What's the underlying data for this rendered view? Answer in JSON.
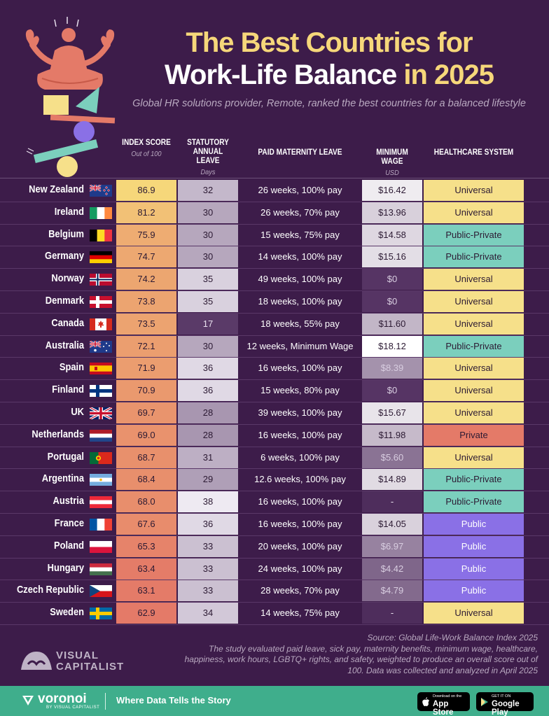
{
  "title": {
    "line1": "The Best Countries for",
    "line2_main": "Work-Life Balance",
    "line2_accent": "in 2025"
  },
  "subtitle": "Global HR solutions provider, Remote, ranked the best countries for a balanced lifestyle",
  "headers": {
    "index": "INDEX SCORE",
    "index_sub": "Out of 100",
    "leave": "STATUTORY ANNUAL LEAVE",
    "leave_sub": "Days",
    "maternity": "PAID MATERNITY LEAVE",
    "wage": "MINIMUM WAGE",
    "wage_sub": "USD",
    "health": "HEALTHCARE SYSTEM"
  },
  "colors": {
    "background": "#3d1c4a",
    "universal": "#f6e08a",
    "public_private": "#7bcfbd",
    "private": "#e47a68",
    "public": "#8a70e6",
    "footer": "#3fae8c"
  },
  "chart_data": {
    "type": "table",
    "columns": [
      "Index Score",
      "Statutory Annual Leave",
      "Paid Maternity Leave",
      "Minimum Wage",
      "Healthcare System"
    ],
    "rows": [
      {
        "country": "New Zealand",
        "flag": "new-zealand-flag",
        "index": "86.9",
        "leave": "32",
        "maternity": "26 weeks, 100% pay",
        "wage": "$16.42",
        "health": "Universal"
      },
      {
        "country": "Ireland",
        "flag": "ireland-flag",
        "index": "81.2",
        "leave": "30",
        "maternity": "26 weeks, 70% pay",
        "wage": "$13.96",
        "health": "Universal"
      },
      {
        "country": "Belgium",
        "flag": "belgium-flag",
        "index": "75.9",
        "leave": "30",
        "maternity": "15 weeks, 75% pay",
        "wage": "$14.58",
        "health": "Public-Private"
      },
      {
        "country": "Germany",
        "flag": "germany-flag",
        "index": "74.7",
        "leave": "30",
        "maternity": "14 weeks, 100% pay",
        "wage": "$15.16",
        "health": "Public-Private"
      },
      {
        "country": "Norway",
        "flag": "norway-flag",
        "index": "74.2",
        "leave": "35",
        "maternity": "49 weeks, 100% pay",
        "wage": "$0",
        "health": "Universal"
      },
      {
        "country": "Denmark",
        "flag": "denmark-flag",
        "index": "73.8",
        "leave": "35",
        "maternity": "18 weeks, 100% pay",
        "wage": "$0",
        "health": "Universal"
      },
      {
        "country": "Canada",
        "flag": "canada-flag",
        "index": "73.5",
        "leave": "17",
        "maternity": "18 weeks, 55% pay",
        "wage": "$11.60",
        "health": "Universal"
      },
      {
        "country": "Australia",
        "flag": "australia-flag",
        "index": "72.1",
        "leave": "30",
        "maternity": "12 weeks, Minimum Wage",
        "wage": "$18.12",
        "health": "Public-Private"
      },
      {
        "country": "Spain",
        "flag": "spain-flag",
        "index": "71.9",
        "leave": "36",
        "maternity": "16 weeks, 100% pay",
        "wage": "$8.39",
        "health": "Universal"
      },
      {
        "country": "Finland",
        "flag": "finland-flag",
        "index": "70.9",
        "leave": "36",
        "maternity": "15 weeks, 80% pay",
        "wage": "$0",
        "health": "Universal"
      },
      {
        "country": "UK",
        "flag": "uk-flag",
        "index": "69.7",
        "leave": "28",
        "maternity": "39 weeks, 100% pay",
        "wage": "$15.67",
        "health": "Universal"
      },
      {
        "country": "Netherlands",
        "flag": "netherlands-flag",
        "index": "69.0",
        "leave": "28",
        "maternity": "16 weeks, 100% pay",
        "wage": "$11.98",
        "health": "Private"
      },
      {
        "country": "Portugal",
        "flag": "portugal-flag",
        "index": "68.7",
        "leave": "31",
        "maternity": "6 weeks, 100% pay",
        "wage": "$5.60",
        "health": "Universal"
      },
      {
        "country": "Argentina",
        "flag": "argentina-flag",
        "index": "68.4",
        "leave": "29",
        "maternity": "12.6 weeks, 100% pay",
        "wage": "$14.89",
        "health": "Public-Private"
      },
      {
        "country": "Austria",
        "flag": "austria-flag",
        "index": "68.0",
        "leave": "38",
        "maternity": "16 weeks, 100% pay",
        "wage": "-",
        "health": "Public-Private"
      },
      {
        "country": "France",
        "flag": "france-flag",
        "index": "67.6",
        "leave": "36",
        "maternity": "16 weeks, 100% pay",
        "wage": "$14.05",
        "health": "Public"
      },
      {
        "country": "Poland",
        "flag": "poland-flag",
        "index": "65.3",
        "leave": "33",
        "maternity": "20 weeks, 100% pay",
        "wage": "$6.97",
        "health": "Public"
      },
      {
        "country": "Hungary",
        "flag": "hungary-flag",
        "index": "63.4",
        "leave": "33",
        "maternity": "24 weeks, 100% pay",
        "wage": "$4.42",
        "health": "Public"
      },
      {
        "country": "Czech Republic",
        "flag": "czech-republic-flag",
        "index": "63.1",
        "leave": "33",
        "maternity": "28 weeks, 70% pay",
        "wage": "$4.79",
        "health": "Public"
      },
      {
        "country": "Sweden",
        "flag": "sweden-flag",
        "index": "62.9",
        "leave": "34",
        "maternity": "14 weeks, 75% pay",
        "wage": "-",
        "health": "Universal"
      }
    ]
  },
  "source": "Source: Global Life-Work Balance Index 2025",
  "notes": "The study evaluated paid leave, sick pay, maternity benefits, minimum wage, healthcare, happiness, work hours, LGBTQ+ rights, and safety, weighted to produce an overall score out of 100. Data was collected and analyzed in April 2025",
  "brand": {
    "vc_line1": "VISUAL",
    "vc_line2": "CAPITALIST"
  },
  "footer": {
    "logo": "voronoi",
    "logo_sub": "BY VISUAL CAPITALIST",
    "tagline": "Where Data Tells the Story",
    "appstore_small": "Download on the",
    "appstore_big": "App Store",
    "googleplay_small": "GET IT ON",
    "googleplay_big": "Google Play"
  }
}
